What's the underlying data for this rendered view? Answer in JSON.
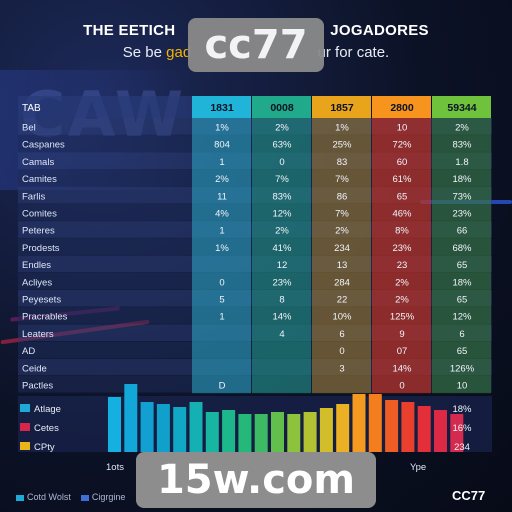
{
  "header": {
    "title": "THE EETICH",
    "title_right": "JOGADORES",
    "subtitle_left": "Se be ",
    "subtitle_accent": "gad",
    "subtitle_right": "ur for cate."
  },
  "watermarks": {
    "top": "cc77",
    "bottom": "15w.com",
    "corner": "CC77"
  },
  "colors": {
    "col1": "#2bb6cf",
    "col2": "#1fa58c",
    "col3": "#b68a2a",
    "col4": "#d6331f",
    "col5": "#3c8a3a",
    "header1": "#20b4d8",
    "header2": "#20a98a",
    "header3": "#e8a51c",
    "header4": "#f7941d",
    "header5": "#6ec23c"
  },
  "chart_data": [
    {
      "type": "table",
      "columns": [
        "TAB",
        "1831",
        "0008",
        "1857",
        "2800",
        "59344"
      ],
      "rows": [
        [
          "Bel",
          "1%",
          "2%",
          "1%",
          "10",
          "2%"
        ],
        [
          "Caspanes",
          "804",
          "63%",
          "25%",
          "72%",
          "83%"
        ],
        [
          "Camals",
          "1",
          "0",
          "83",
          "60",
          "1.8"
        ],
        [
          "Camites",
          "2%",
          "7%",
          "7%",
          "61%",
          "18%"
        ],
        [
          "Farlis",
          "11",
          "83%",
          "86",
          "65",
          "73%"
        ],
        [
          "Comites",
          "4%",
          "12%",
          "7%",
          "46%",
          "23%"
        ],
        [
          "Peteres",
          "1",
          "2%",
          "2%",
          "8%",
          "66"
        ],
        [
          "Prodests",
          "1%",
          "41%",
          "234",
          "23%",
          "68%"
        ],
        [
          "Endles",
          "",
          "12",
          "13",
          "23",
          "65"
        ],
        [
          "Acliyes",
          "0",
          "23%",
          "284",
          "2%",
          "18%"
        ],
        [
          "Peyesets",
          "5",
          "8",
          "22",
          "2%",
          "65"
        ],
        [
          "Pracrables",
          "1",
          "14%",
          "10%",
          "125%",
          "12%"
        ],
        [
          "Leaters",
          "",
          "4",
          "6",
          "9",
          "6"
        ],
        [
          "AD",
          "",
          "",
          "0",
          "07",
          "65"
        ],
        [
          "Ceide",
          "",
          "",
          "3",
          "14%",
          "126%"
        ],
        [
          "Pactles",
          "D",
          "",
          "",
          "0",
          "10"
        ]
      ]
    },
    {
      "type": "bar",
      "values": [
        55,
        68,
        50,
        48,
        45,
        50,
        40,
        42,
        38,
        38,
        40,
        38,
        40,
        44,
        48,
        58,
        58,
        52,
        50,
        46,
        42,
        38
      ],
      "colors": [
        "#14b0e0",
        "#13a6d8",
        "#12a0d2",
        "#11a0cc",
        "#10a8c4",
        "#14b0b4",
        "#18b6a0",
        "#1cb88c",
        "#24b978",
        "#3dbb64",
        "#62bf4c",
        "#8cc23c",
        "#b2c232",
        "#d2bd2a",
        "#ecb024",
        "#f59a20",
        "#f47e1e",
        "#ee5d24",
        "#e8402c",
        "#e22f3a",
        "#dc2a46",
        "#d42a4f"
      ],
      "ylim": [
        0,
        80
      ],
      "xlabel_left": "1ots",
      "xlabel_right": "Ype",
      "legend": [
        "Atlage",
        "Cetes",
        "CPty"
      ],
      "legend_colors": [
        "#1fa9d6",
        "#d6264a",
        "#e8b418"
      ],
      "right_labels": [
        "18%",
        "16%",
        "234"
      ]
    }
  ],
  "footer": {
    "legend_left": [
      "Cotd Wolst",
      "Cigrgine"
    ]
  }
}
